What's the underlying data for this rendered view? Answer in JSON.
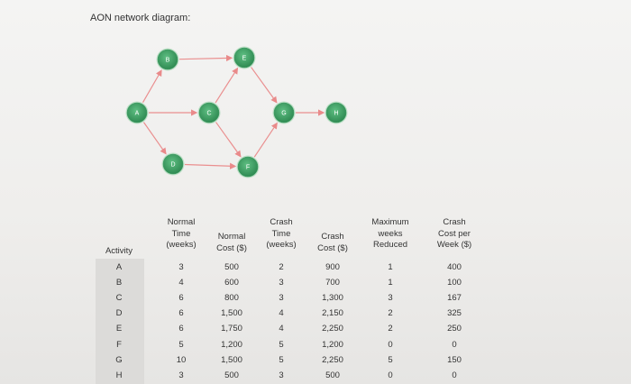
{
  "title": "AON network diagram:",
  "nodes": [
    {
      "id": "A",
      "label": "A"
    },
    {
      "id": "B",
      "label": "B"
    },
    {
      "id": "C",
      "label": "C"
    },
    {
      "id": "D",
      "label": "D"
    },
    {
      "id": "E",
      "label": "E"
    },
    {
      "id": "F",
      "label": "F"
    },
    {
      "id": "G",
      "label": "G"
    },
    {
      "id": "H",
      "label": "H"
    }
  ],
  "edges": [
    [
      "A",
      "B"
    ],
    [
      "A",
      "C"
    ],
    [
      "A",
      "D"
    ],
    [
      "B",
      "E"
    ],
    [
      "C",
      "E"
    ],
    [
      "C",
      "F"
    ],
    [
      "D",
      "F"
    ],
    [
      "E",
      "G"
    ],
    [
      "F",
      "G"
    ],
    [
      "G",
      "H"
    ]
  ],
  "colors": {
    "node_fill": "#3f9c63",
    "node_ring": "#bfe0c8",
    "edge": "#ea8f8f"
  },
  "table": {
    "headers": [
      "Activity",
      "Normal\nTime\n(weeks)",
      "Normal\nCost ($)",
      "Crash\nTime\n(weeks)",
      "Crash\nCost ($)",
      "Maximum\nweeks\nReduced",
      "Crash\nCost per\nWeek ($)"
    ],
    "rows": [
      [
        "A",
        "3",
        "500",
        "2",
        "900",
        "1",
        "400"
      ],
      [
        "B",
        "4",
        "600",
        "3",
        "700",
        "1",
        "100"
      ],
      [
        "C",
        "6",
        "800",
        "3",
        "1,300",
        "3",
        "167"
      ],
      [
        "D",
        "6",
        "1,500",
        "4",
        "2,150",
        "2",
        "325"
      ],
      [
        "E",
        "6",
        "1,750",
        "4",
        "2,250",
        "2",
        "250"
      ],
      [
        "F",
        "5",
        "1,200",
        "5",
        "1,200",
        "0",
        "0"
      ],
      [
        "G",
        "10",
        "1,500",
        "5",
        "2,250",
        "5",
        "150"
      ],
      [
        "H",
        "3",
        "500",
        "3",
        "500",
        "0",
        "0"
      ]
    ]
  }
}
